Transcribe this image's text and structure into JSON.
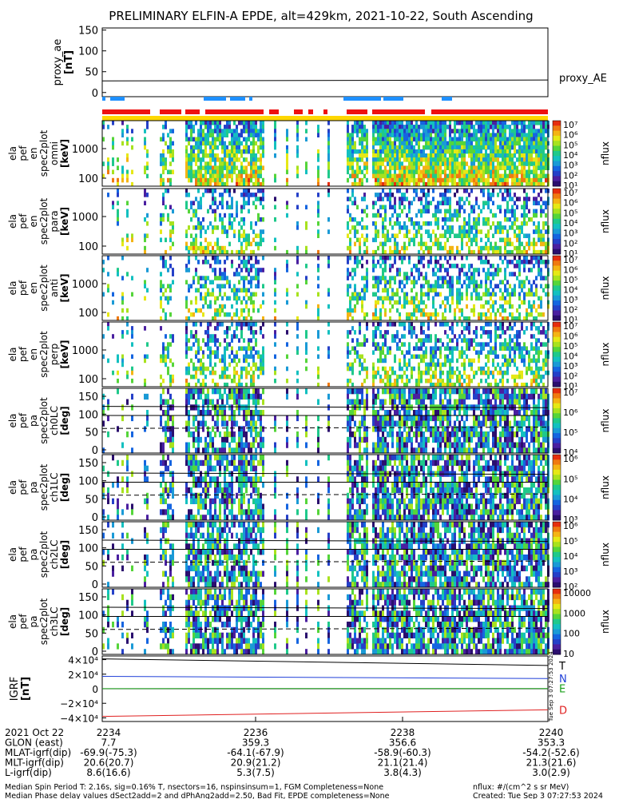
{
  "title": "PRELIMINARY ELFIN-A EPDE, alt=429km, 2021-10-22, South Ascending",
  "chart_data": [
    {
      "type": "line",
      "panel": "proxy_ae",
      "ylabel": [
        "proxy_ae",
        "[nT]"
      ],
      "yticks": [
        "150",
        "100",
        "50",
        "0"
      ],
      "ylim": [
        -10,
        155
      ],
      "series": [
        {
          "name": "proxy_AE",
          "x": [
            "2234",
            "2240"
          ],
          "values": [
            28,
            30
          ]
        }
      ]
    },
    {
      "type": "heatmap",
      "panels": [
        {
          "ylabel": [
            "ela",
            "pef",
            "en",
            "spec2plot",
            "omni",
            "[keV]"
          ],
          "yticks": [
            "1000",
            "100"
          ],
          "cbar_ticks": [
            "10⁷",
            "10⁶",
            "10⁵",
            "10⁴",
            "10³",
            "10²",
            "10¹"
          ],
          "cbar_label": "nflux"
        },
        {
          "ylabel": [
            "ela",
            "pef",
            "en",
            "spec2plot",
            "para",
            "[keV]"
          ],
          "yticks": [
            "1000",
            "100"
          ],
          "cbar_ticks": [
            "10⁷",
            "10⁶",
            "10⁵",
            "10⁴",
            "10³",
            "10²",
            "10¹"
          ],
          "cbar_label": "nflux"
        },
        {
          "ylabel": [
            "ela",
            "pef",
            "en",
            "spec2plot",
            "anti",
            "[keV]"
          ],
          "yticks": [
            "1000",
            "100"
          ],
          "cbar_ticks": [
            "10⁷",
            "10⁶",
            "10⁵",
            "10⁴",
            "10³",
            "10²",
            "10¹"
          ],
          "cbar_label": "nflux"
        },
        {
          "ylabel": [
            "ela",
            "pef",
            "en",
            "spec2plot",
            "perp",
            "[keV]"
          ],
          "yticks": [
            "1000",
            "100"
          ],
          "cbar_ticks": [
            "10⁷",
            "10⁶",
            "10⁵",
            "10⁴",
            "10³",
            "10²",
            "10¹"
          ],
          "cbar_label": "nflux"
        },
        {
          "ylabel": [
            "ela",
            "pef",
            "pa",
            "spec2plot",
            "ch0LC",
            "[deg]"
          ],
          "yticks": [
            "150",
            "100",
            "50",
            "0"
          ],
          "cbar_ticks": [
            "10⁷",
            "10⁶",
            "10⁵",
            "10⁴"
          ],
          "cbar_label": "nflux"
        },
        {
          "ylabel": [
            "ela",
            "pef",
            "pa",
            "spec2plot",
            "ch1LC",
            "[deg]"
          ],
          "yticks": [
            "150",
            "100",
            "50",
            "0"
          ],
          "cbar_ticks": [
            "10⁶",
            "10⁵",
            "10⁴",
            "10³"
          ],
          "cbar_label": "nflux"
        },
        {
          "ylabel": [
            "ela",
            "pef",
            "pa",
            "spec2plot",
            "ch2LC",
            "[deg]"
          ],
          "yticks": [
            "150",
            "100",
            "50",
            "0"
          ],
          "cbar_ticks": [
            "10⁶",
            "10⁵",
            "10⁴",
            "10³",
            "10²"
          ],
          "cbar_label": "nflux"
        },
        {
          "ylabel": [
            "ela",
            "pef",
            "pa",
            "spec2plot",
            "ch3LC",
            "[deg]"
          ],
          "yticks": [
            "150",
            "100",
            "50",
            "0"
          ],
          "cbar_ticks": [
            "10000",
            "1000",
            "100",
            "10"
          ],
          "cbar_label": "nflux"
        }
      ]
    },
    {
      "type": "line",
      "panel": "IGRF",
      "ylabel": [
        "IGRF",
        "[nT]"
      ],
      "yticks": [
        "4×10⁴",
        "2×10⁴",
        "0",
        "−2×10⁴",
        "−4×10⁴"
      ],
      "ylim": [
        -45000,
        45000
      ],
      "series": [
        {
          "name": "T",
          "color": "#000000",
          "x": [
            "2234",
            "2240"
          ],
          "values": [
            41000,
            32000
          ]
        },
        {
          "name": "N",
          "color": "#1f3fd8",
          "x": [
            "2234",
            "2240"
          ],
          "values": [
            17000,
            14000
          ]
        },
        {
          "name": "E",
          "color": "#1aa01a",
          "x": [
            "2234",
            "2240"
          ],
          "values": [
            200,
            300
          ]
        },
        {
          "name": "D",
          "color": "#e02020",
          "x": [
            "2234",
            "2240"
          ],
          "values": [
            -38000,
            -29000
          ]
        }
      ]
    }
  ],
  "xaxis": {
    "rows": [
      {
        "label": "2021 Oct 22",
        "vals": [
          "2234",
          "2236",
          "2238",
          "2240"
        ]
      },
      {
        "label": "GLON (east)",
        "vals": [
          "7.7",
          "359.3",
          "356.6",
          "353.3"
        ]
      },
      {
        "label": "MLAT-igrf(dip)",
        "vals": [
          "-69.9(-75.3)",
          "-64.1(-67.9)",
          "-58.9(-60.3)",
          "-54.2(-52.6)"
        ]
      },
      {
        "label": "MLT-igrf(dip)",
        "vals": [
          "20.6(20.7)",
          "20.9(21.2)",
          "21.1(21.4)",
          "21.3(21.6)"
        ]
      },
      {
        "label": "L-igrf(dip)",
        "vals": [
          "8.6(16.6)",
          "5.3(7.5)",
          "3.8(4.3)",
          "3.0(2.9)"
        ]
      }
    ]
  },
  "footer": {
    "line1": "Median Spin Period T: 2.16s, sig=0.16% T, nsectors=16, nspinsinsum=1, FGM Completeness=None",
    "line2": "Median Phase delay values dSect2add=2 and dPhAng2add=2.50, Bad Fit, EPDE completeness=None",
    "right1": "nflux: #/(cm^2 s sr MeV)",
    "right2": "Created: Tue Sep  3 07:27:53 2024",
    "stamp": "Tue Sep  3 07:27:53 2024"
  },
  "colors": {
    "blue_bar": "#1e90ff",
    "red_bar": "#ee1111",
    "yellow_bar": "#ffd700"
  }
}
